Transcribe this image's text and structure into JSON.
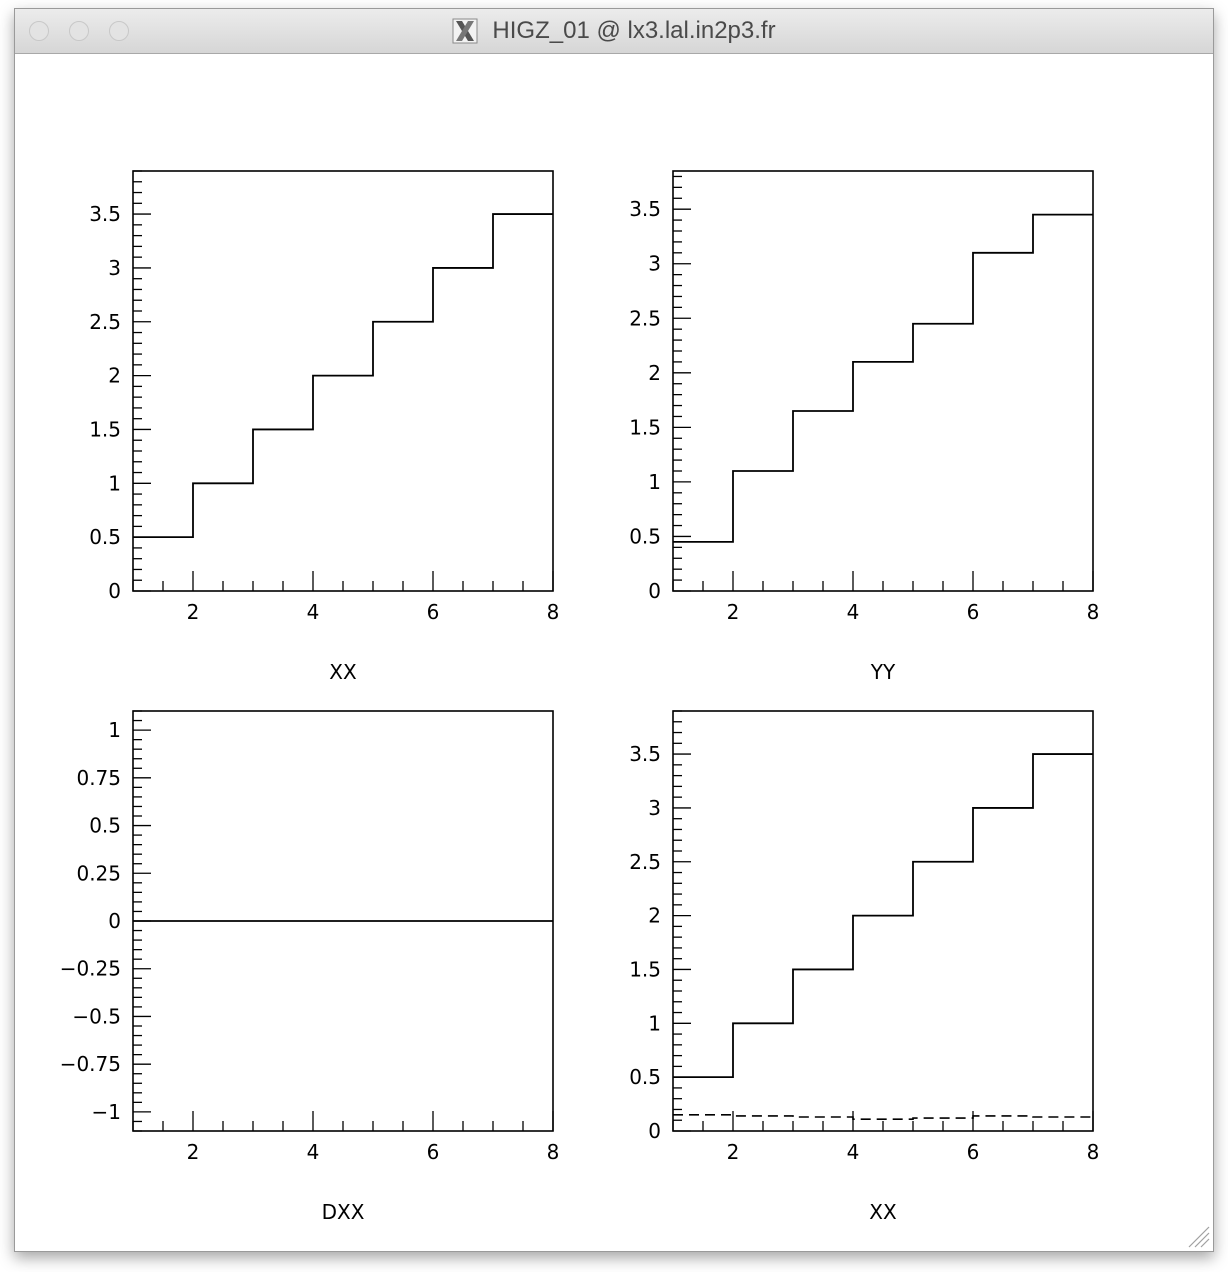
{
  "window": {
    "title": "HIGZ_01 @ lx3.lal.in2p3.fr",
    "icon": "x11-icon"
  },
  "chart_data": [
    {
      "type": "line",
      "style": "step",
      "xlabel": "XX",
      "xlim": [
        1,
        8
      ],
      "ylim": [
        0,
        3.9
      ],
      "xticks": [
        2,
        4,
        6,
        8
      ],
      "xtick_labels": [
        "2",
        "4",
        "6",
        "8"
      ],
      "yticks": [
        0,
        0.5,
        1,
        1.5,
        2,
        2.5,
        3,
        3.5
      ],
      "ytick_labels": [
        "0",
        "0.5",
        "1",
        "1.5",
        "2",
        "2.5",
        "3",
        "3.5"
      ],
      "x": [
        1,
        2,
        3,
        4,
        5,
        6,
        7
      ],
      "values": [
        0.5,
        1.0,
        1.5,
        2.0,
        2.5,
        3.0,
        3.5
      ]
    },
    {
      "type": "line",
      "style": "step",
      "xlabel": "YY",
      "xlim": [
        1,
        8
      ],
      "ylim": [
        0,
        3.85
      ],
      "xticks": [
        2,
        4,
        6,
        8
      ],
      "xtick_labels": [
        "2",
        "4",
        "6",
        "8"
      ],
      "yticks": [
        0,
        0.5,
        1,
        1.5,
        2,
        2.5,
        3,
        3.5
      ],
      "ytick_labels": [
        "0",
        "0.5",
        "1",
        "1.5",
        "2",
        "2.5",
        "3",
        "3.5"
      ],
      "x": [
        1,
        2,
        3,
        4,
        5,
        6,
        7
      ],
      "values": [
        0.45,
        1.1,
        1.65,
        2.1,
        2.45,
        3.1,
        3.45
      ]
    },
    {
      "type": "line",
      "style": "step",
      "xlabel": "DXX",
      "xlim": [
        1,
        8
      ],
      "ylim": [
        -1.1,
        1.1
      ],
      "xticks": [
        2,
        4,
        6,
        8
      ],
      "xtick_labels": [
        "2",
        "4",
        "6",
        "8"
      ],
      "yticks": [
        -1,
        -0.75,
        -0.5,
        -0.25,
        0,
        0.25,
        0.5,
        0.75,
        1
      ],
      "ytick_labels": [
        "−1",
        "−0.75",
        "−0.5",
        "−0.25",
        "0",
        "0.25",
        "0.5",
        "0.75",
        "1"
      ],
      "x": [
        1,
        2,
        3,
        4,
        5,
        6,
        7
      ],
      "values": [
        0,
        0,
        0,
        0,
        0,
        0,
        0
      ]
    },
    {
      "type": "line",
      "style": "step",
      "xlabel": "XX",
      "xlim": [
        1,
        8
      ],
      "ylim": [
        0,
        3.9
      ],
      "xticks": [
        2,
        4,
        6,
        8
      ],
      "xtick_labels": [
        "2",
        "4",
        "6",
        "8"
      ],
      "yticks": [
        0,
        0.5,
        1,
        1.5,
        2,
        2.5,
        3,
        3.5
      ],
      "ytick_labels": [
        "0",
        "0.5",
        "1",
        "1.5",
        "2",
        "2.5",
        "3",
        "3.5"
      ],
      "x": [
        1,
        2,
        3,
        4,
        5,
        6,
        7
      ],
      "values": [
        0.5,
        1.0,
        1.5,
        2.0,
        2.5,
        3.0,
        3.5
      ],
      "overlay": {
        "style": "dashed",
        "x": [
          1,
          2,
          3,
          4,
          5,
          6,
          7
        ],
        "values": [
          0.15,
          0.14,
          0.13,
          0.11,
          0.12,
          0.14,
          0.13
        ]
      }
    }
  ]
}
